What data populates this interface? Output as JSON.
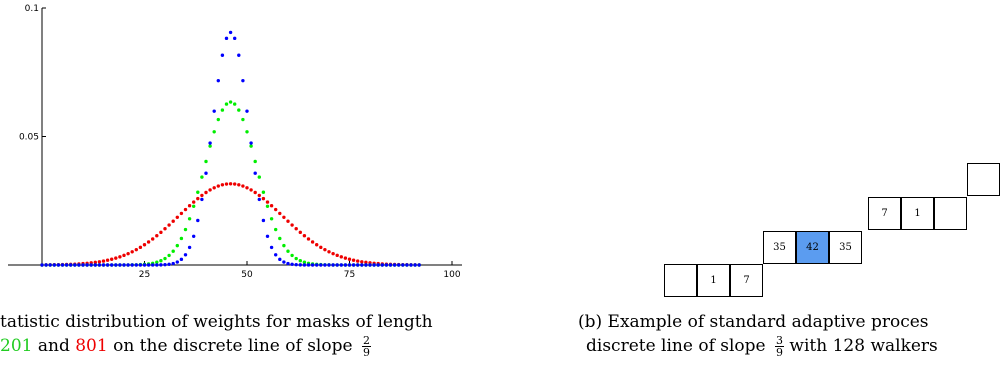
{
  "chart_data": {
    "type": "scatter",
    "xlim": [
      0,
      100
    ],
    "ylim": [
      0,
      0.1
    ],
    "x_ticks": [
      "25",
      "50",
      "75",
      "100"
    ],
    "y_ticks": [
      "0.05",
      "0.1"
    ],
    "grid": false,
    "series": [
      {
        "color": "#0000ff",
        "center": 46,
        "sigma": 4.4,
        "peak": 0.0905,
        "range": [
          0,
          92
        ]
      },
      {
        "color": "#00ee00",
        "center": 46,
        "sigma": 6.3,
        "peak": 0.0634,
        "range": [
          0,
          92
        ]
      },
      {
        "color": "#ee0000",
        "center": 46,
        "sigma": 12.6,
        "peak": 0.0316,
        "range": [
          0,
          92
        ]
      }
    ]
  },
  "caption_a": {
    "line1": "tatistic distribution of weights for masks of length",
    "line2_part1": "201",
    "line2_part1_color": "#22cc22",
    "line2_mid": " and ",
    "line2_part2": "801",
    "line2_part2_color": "#ee0000",
    "line2_rest": " on the discrete line of slope",
    "slope_num": "2",
    "slope_den": "9"
  },
  "caption_b": {
    "line1": "(b) Example of standard adaptive proces",
    "line2_pre": "discrete line of slope",
    "slope_num": "3",
    "slope_den": "9",
    "line2_post": "with 128 walkers"
  },
  "grid_diagram": {
    "highlight_color": "#5b9cf0",
    "cells": [
      {
        "label": ""
      },
      {
        "label": "1"
      },
      {
        "label": "7"
      },
      {
        "label": "35"
      },
      {
        "label": "42",
        "highlight": true
      },
      {
        "label": "35"
      },
      {
        "label": "7"
      },
      {
        "label": "1"
      },
      {
        "label": ""
      },
      {
        "label": ""
      }
    ]
  }
}
